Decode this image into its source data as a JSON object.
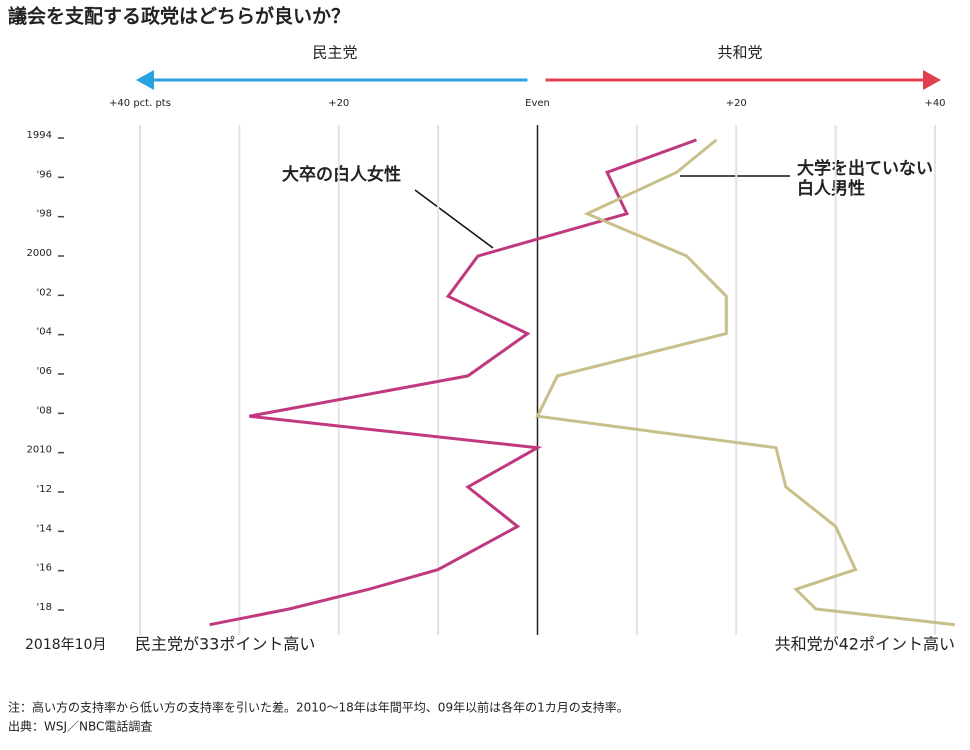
{
  "chart_data": {
    "type": "line",
    "title": "議会を支配する政党はどちらが良いか？",
    "left_label": "民主党",
    "right_label": "共和党",
    "left_color": "#2aa3dc",
    "right_color": "#e0404f",
    "x": [
      1994.25,
      1995.9,
      1998.0,
      2000.15,
      2002.2,
      2004.1,
      2006.25,
      2008.3,
      2009.9,
      2011.9,
      2013.9,
      2016.1,
      2017.1,
      2018.1,
      2018.9
    ],
    "series": [
      {
        "name": "大卒の白人女性",
        "color": "#c0397f",
        "values": [
          16,
          7,
          9,
          -6,
          -9,
          -1,
          -7,
          -29,
          0,
          -7,
          -2,
          -10,
          -17,
          -25,
          -33
        ]
      },
      {
        "name": [
          "大学を出ていない",
          "白人男性"
        ],
        "color": "#c8bf8a",
        "values": [
          18,
          14,
          5,
          15,
          19,
          19,
          2,
          0,
          24,
          25,
          30,
          32,
          26,
          28,
          42
        ]
      }
    ],
    "vlim": [
      -41,
      42.5
    ],
    "vticks": [
      {
        "value": -40,
        "label": "+40 pct. pts"
      },
      {
        "value": -20,
        "label": "+20"
      },
      {
        "value": 0,
        "label": "Even"
      },
      {
        "value": 20,
        "label": "+20"
      },
      {
        "value": 40,
        "label": "+40"
      }
    ],
    "vgrid": [
      -40,
      -30,
      -20,
      -10,
      10,
      20,
      30,
      40
    ],
    "tlim": [
      1994,
      2018
    ],
    "tticks": [
      1994,
      {
        "value": 1996,
        "label": "'96"
      },
      {
        "value": 1998,
        "label": "'98"
      },
      2000,
      {
        "value": 2002,
        "label": "'02"
      },
      {
        "value": 2004,
        "label": "'04"
      },
      {
        "value": 2006,
        "label": "'06"
      },
      {
        "value": 2008,
        "label": "'08"
      },
      2010,
      {
        "value": 2012,
        "label": "'12"
      },
      {
        "value": 2014,
        "label": "'14"
      },
      {
        "value": 2016,
        "label": "'16"
      },
      {
        "value": 2018,
        "label": "'18"
      }
    ],
    "end_date": "2018年10月",
    "end_left": "民主党が33ポイント高い",
    "end_right": "共和党が42ポイント高い",
    "notes": [
      "注：高い方の支持率から低い方の支持率を引いた差。2010〜18年は年間平均、09年以前は各年の1カ月の支持率。",
      "出典：WSJ／NBC電話調査"
    ]
  }
}
